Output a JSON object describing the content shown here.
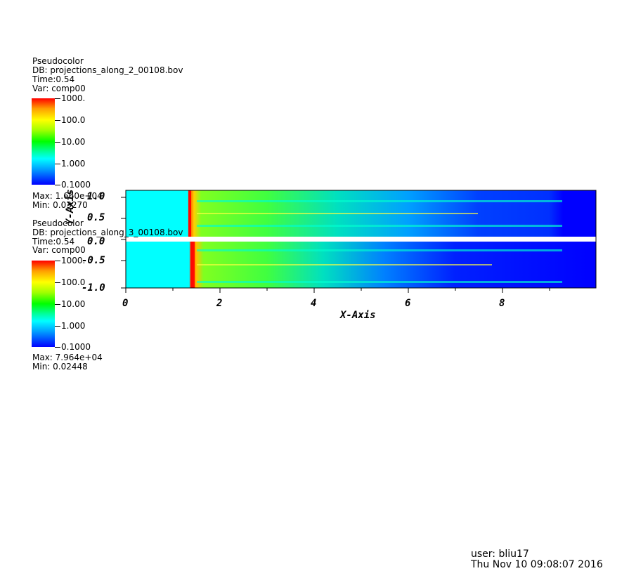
{
  "plot1": {
    "plot_type": "Pseudocolor",
    "db": "DB: projections_along_2_00108.bov",
    "time": "Time:0.54",
    "var": "Var: comp00",
    "colorbar_labels": [
      "1000.",
      "100.0",
      "10.00",
      "1.000",
      "0.1000"
    ],
    "max": "Max: 1.660e+04",
    "min": "Min: 0.03270"
  },
  "plot2": {
    "plot_type": "Pseudocolor",
    "db": "DB: projections_along_3_00108.bov",
    "time": "Time:0.54",
    "var": "Var: comp00",
    "colorbar_labels": [
      "1000.",
      "100.0",
      "10.00",
      "1.000",
      "0.1000"
    ],
    "max": "Max: 7.964e+04",
    "min": "Min: 0.02448"
  },
  "axes": {
    "xlabel": "X-Axis",
    "ylabel": "Y-Axis",
    "x_ticks": [
      "0",
      "2",
      "4",
      "6",
      "8"
    ],
    "y_ticks": [
      "1.0",
      "0.5",
      "0.0",
      "-0.5",
      "-1.0"
    ]
  },
  "footer": {
    "user": "user: bliu17",
    "date": "Thu Nov 10 09:08:07 2016"
  },
  "colors": {
    "background_field": "#00ffff",
    "deep_field": "#0000ff"
  }
}
